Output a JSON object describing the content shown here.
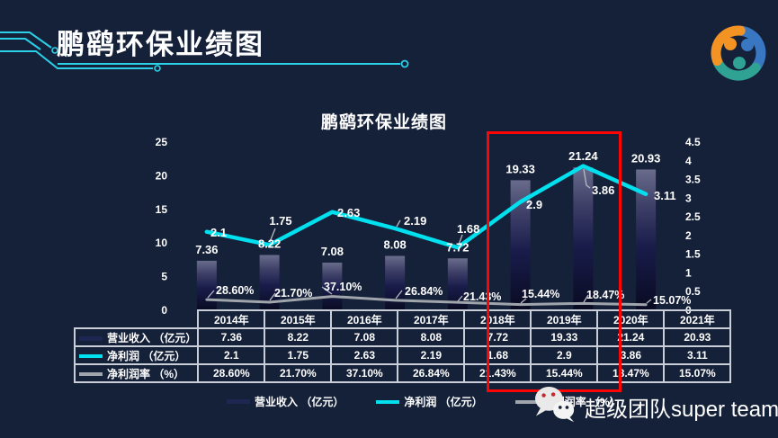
{
  "header": {
    "title": "鹏鹞环保业绩图"
  },
  "logo": {
    "name": "team-swirl-logo",
    "colors": [
      "#f39324",
      "#3a77c2",
      "#2fa294"
    ]
  },
  "chart_data": {
    "type": "bar+line",
    "title": "鹏鹞环保业绩图",
    "categories": [
      "2014年",
      "2015年",
      "2016年",
      "2017年",
      "2018年",
      "2019年",
      "2020年",
      "2021年"
    ],
    "series": [
      {
        "name": "营业收入 （亿元）",
        "type": "bar",
        "axis": "left",
        "color": "#1d2752",
        "values": [
          7.36,
          8.22,
          7.08,
          8.08,
          7.72,
          19.33,
          21.24,
          20.93
        ],
        "labels": [
          "7.36",
          "8.22",
          "7.08",
          "8.08",
          "7.72",
          "19.33",
          "21.24",
          "20.93"
        ]
      },
      {
        "name": "净利润 （亿元）",
        "type": "line",
        "axis": "right",
        "color": "#00e0ee",
        "values": [
          2.1,
          1.75,
          2.63,
          2.19,
          1.68,
          2.9,
          3.86,
          3.11
        ],
        "labels": [
          "2.1",
          "1.75",
          "2.63",
          "2.19",
          "1.68",
          "2.9",
          "3.86",
          "3.11"
        ]
      },
      {
        "name": "净利润率 （%）",
        "type": "line",
        "axis": "right-percent-div100",
        "color": "#a0a5ac",
        "values": [
          28.6,
          21.7,
          37.1,
          26.84,
          21.43,
          15.44,
          18.47,
          15.07
        ],
        "labels": [
          "28.60%",
          "21.70%",
          "37.10%",
          "26.84%",
          "21.43%",
          "15.44%",
          "18.47%",
          "15.07%"
        ]
      }
    ],
    "left_axis": {
      "range": [
        0,
        25
      ],
      "ticks": [
        0,
        5,
        10,
        15,
        20,
        25
      ]
    },
    "right_axis": {
      "range": [
        0,
        4.5
      ],
      "ticks": [
        0,
        0.5,
        1,
        1.5,
        2,
        2.5,
        3,
        3.5,
        4,
        4.5
      ]
    },
    "grid": false,
    "legend_position": "bottom"
  },
  "table": {
    "row_labels": [
      "营业收入 （亿元）",
      "净利润 （亿元）",
      "净利润率 （%）"
    ]
  },
  "legend": {
    "items": [
      {
        "label": "营业收入 （亿元）",
        "swatch": "bar"
      },
      {
        "label": "净利润 （亿元）",
        "swatch": "line-cyan"
      },
      {
        "label": "净利润率 （%）",
        "swatch": "line-gray"
      }
    ]
  },
  "highlight": {
    "columns": [
      "2019年",
      "2020年"
    ],
    "color": "#fe0505"
  },
  "footer": {
    "brand_text": "超级团队super team",
    "icon": "wechat-icon"
  }
}
